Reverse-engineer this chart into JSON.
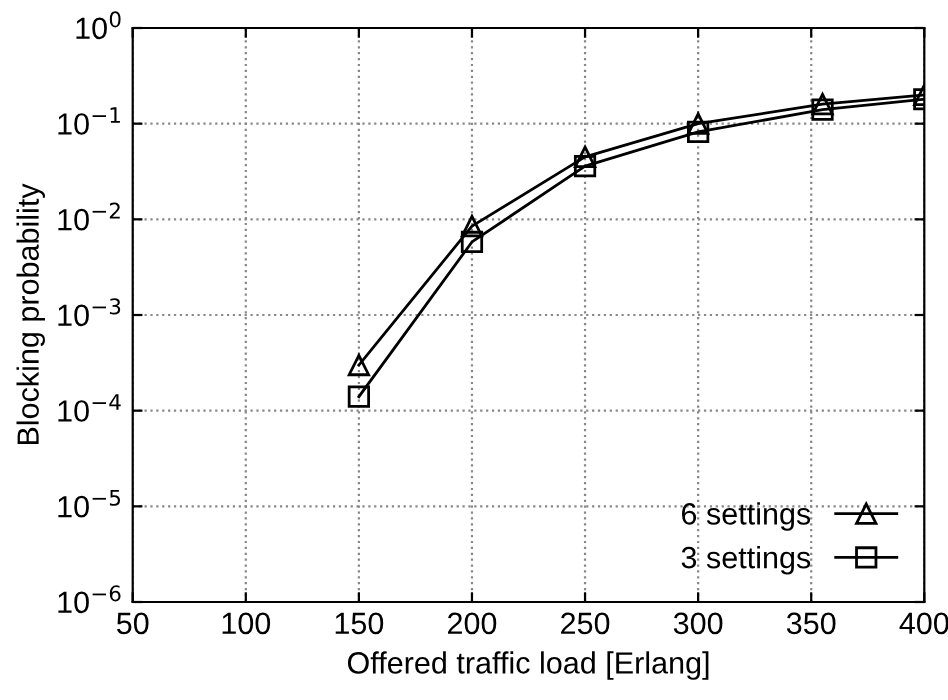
{
  "chart_data": {
    "type": "line",
    "xlabel": "Offered traffic load [Erlang]",
    "ylabel": "Blocking probability",
    "series": [
      {
        "name": "6 settings",
        "color": "#000000",
        "marker": "triangle",
        "x": [
          150,
          200,
          250,
          300,
          355,
          400
        ],
        "values": [
          0.0003,
          0.0085,
          0.045,
          0.1,
          0.16,
          0.2
        ]
      },
      {
        "name": "3 settings",
        "color": "#000000",
        "marker": "square",
        "x": [
          150,
          200,
          250,
          300,
          355,
          400
        ],
        "values": [
          0.00014,
          0.0058,
          0.036,
          0.082,
          0.14,
          0.18
        ]
      }
    ],
    "log": "y",
    "xlim": [
      50,
      400
    ],
    "xticks": [
      50,
      100,
      150,
      200,
      250,
      300,
      350,
      400
    ],
    "ylim": [
      1e-06,
      1
    ],
    "yticks": [
      {
        "value": 1e-06,
        "label": "10$^{−6}$"
      },
      {
        "value": 1e-05,
        "label": "10$^{−5}$"
      },
      {
        "value": 0.0001,
        "label": "10$^{−4}$"
      },
      {
        "value": 0.001,
        "label": "10$^{−3}$"
      },
      {
        "value": 0.01,
        "label": "10$^{−2}$"
      },
      {
        "value": 0.1,
        "label": "10$^{−1}$"
      },
      {
        "value": 1,
        "label": "10$^{0}$"
      }
    ],
    "grid": true,
    "legend": "bottom right",
    "line_style": "solid"
  }
}
